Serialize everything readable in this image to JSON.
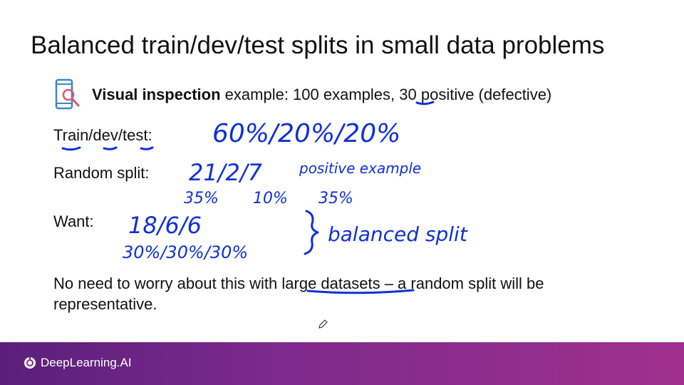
{
  "slide": {
    "title": "Balanced train/dev/test splits in small data problems",
    "example": {
      "bold": "Visual inspection",
      "rest_a": "example:  100 examples, ",
      "num": "30",
      "rest_b": " positive (defective)"
    },
    "rows": {
      "train_dev_test": "Train/dev/test:",
      "random_split": "Random split:",
      "want": "Want:"
    },
    "note": {
      "part_a": "No need to worry about this with ",
      "underlined": "large datasets",
      "part_b": " – a random split will be",
      "line2": "representative."
    }
  },
  "handwriting": {
    "split_pct": "60%/20%/20%",
    "random_counts": "21/2/7",
    "positive_example": "positive example",
    "random_pcts": [
      "35%",
      "10%",
      "35%"
    ],
    "want_counts": "18/6/6",
    "want_pcts": "30%/30%/30%",
    "balanced_split": "balanced split"
  },
  "footer": {
    "brand": "DeepLearning.AI"
  },
  "colors": {
    "ink": "#1030d8",
    "footer_start": "#5a1f7a",
    "footer_end": "#a0308e"
  },
  "icons": [
    "phone-magnifier-icon",
    "pen-cursor-icon",
    "deeplearning-logo-icon"
  ]
}
